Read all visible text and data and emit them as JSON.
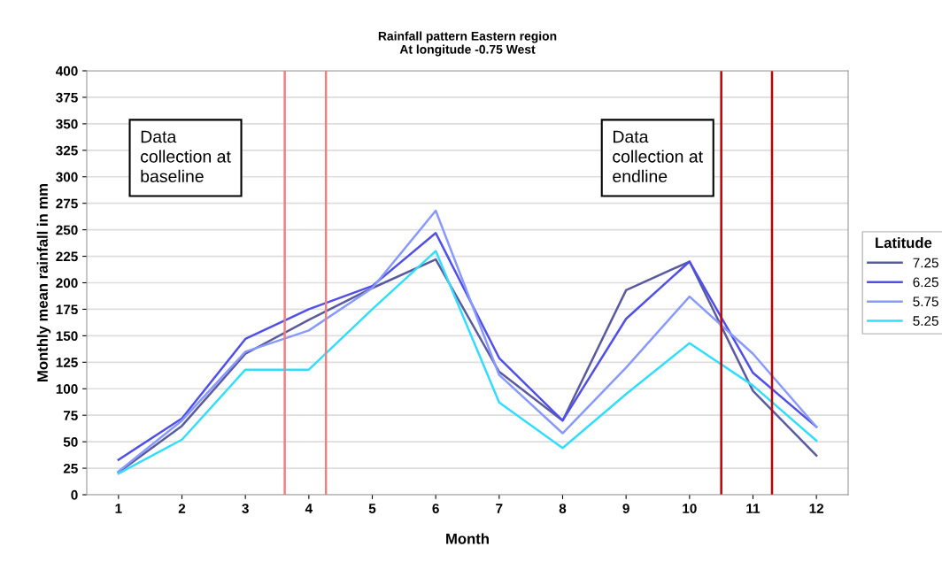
{
  "chart_data": {
    "type": "line",
    "title": "Rainfall pattern Eastern region\nAt longitude -0.75 West",
    "xlabel": "Month",
    "ylabel": "Monthly mean rainfall in mm",
    "legend_title": "Latitude",
    "x": [
      1,
      2,
      3,
      4,
      5,
      6,
      7,
      8,
      9,
      10,
      11,
      12
    ],
    "xlim": [
      0.5,
      12.5
    ],
    "xticks": [
      1,
      2,
      3,
      4,
      5,
      6,
      7,
      8,
      9,
      10,
      11,
      12
    ],
    "ylim": [
      0,
      400
    ],
    "yticks": [
      0,
      25,
      50,
      75,
      100,
      125,
      150,
      175,
      200,
      225,
      250,
      275,
      300,
      325,
      350,
      375,
      400
    ],
    "series": [
      {
        "name": "7.25",
        "color": "#5a5a9e",
        "values": [
          21,
          65,
          133,
          165,
          195,
          222,
          116,
          70,
          193,
          220,
          98,
          37
        ]
      },
      {
        "name": "6.25",
        "color": "#5050e8",
        "values": [
          33,
          72,
          147,
          175,
          197,
          247,
          129,
          70,
          166,
          220,
          115,
          64
        ]
      },
      {
        "name": "5.75",
        "color": "#8899ff",
        "values": [
          22,
          70,
          135,
          155,
          195,
          268,
          113,
          58,
          120,
          187,
          133,
          64
        ]
      },
      {
        "name": "5.25",
        "color": "#33ddff",
        "values": [
          20,
          52,
          118,
          118,
          175,
          230,
          87,
          44,
          95,
          143,
          103,
          51
        ]
      }
    ],
    "ref_lines": [
      {
        "axis": "x",
        "value": 3.62,
        "color": "#f08080"
      },
      {
        "axis": "x",
        "value": 4.27,
        "color": "#f08080"
      },
      {
        "axis": "x",
        "value": 10.5,
        "color": "#c00000"
      },
      {
        "axis": "x",
        "value": 11.3,
        "color": "#c00000"
      }
    ],
    "annotations": [
      "Data\ncollection at\nbaseline",
      "Data\ncollection at\nendline"
    ],
    "grid": "y",
    "legend": "right",
    "marker": "none",
    "line_style": "solid"
  }
}
